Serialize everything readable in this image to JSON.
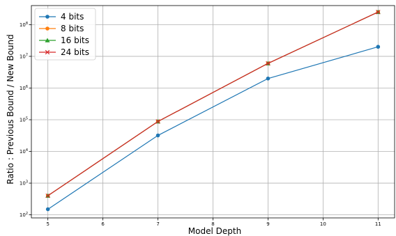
{
  "chart_data": {
    "type": "line",
    "xlabel": "Model Depth",
    "ylabel": "Ratio : Previous Bound / New Bound",
    "x": [
      5,
      7,
      9,
      11
    ],
    "xlim": [
      4.7,
      11.3
    ],
    "ylim": [
      80,
      400000000
    ],
    "yscale": "log",
    "grid": true,
    "legend_position": "top-left",
    "x_ticks": [
      5,
      6,
      7,
      8,
      9,
      10,
      11
    ],
    "x_tick_labels": [
      "5",
      "6",
      "7",
      "8",
      "9",
      "10",
      "11"
    ],
    "y_ticks": [
      100,
      1000,
      10000,
      100000,
      1000000,
      10000000,
      100000000
    ],
    "y_tick_labels": [
      {
        "base": "10",
        "exp": "2"
      },
      {
        "base": "10",
        "exp": "3"
      },
      {
        "base": "10",
        "exp": "4"
      },
      {
        "base": "10",
        "exp": "5"
      },
      {
        "base": "10",
        "exp": "6"
      },
      {
        "base": "10",
        "exp": "7"
      },
      {
        "base": "10",
        "exp": "8"
      }
    ],
    "series": [
      {
        "name": "4 bits",
        "color": "#1f77b4",
        "marker": "circle",
        "values": [
          150,
          32000,
          2000000,
          20000000
        ]
      },
      {
        "name": "8 bits",
        "color": "#ff7f0e",
        "marker": "circle",
        "values": [
          400,
          88000,
          6000000,
          250000000
        ]
      },
      {
        "name": "16 bits",
        "color": "#2ca02c",
        "marker": "triangle",
        "values": [
          400,
          88000,
          6000000,
          250000000
        ]
      },
      {
        "name": "24 bits",
        "color": "#d62728",
        "marker": "x",
        "values": [
          400,
          88000,
          6000000,
          250000000
        ]
      }
    ]
  }
}
